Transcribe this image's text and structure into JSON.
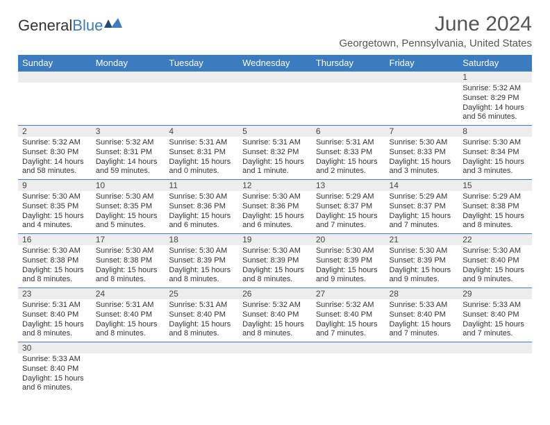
{
  "logo": {
    "general": "General",
    "blue": "Blue"
  },
  "title": "June 2024",
  "location": "Georgetown, Pennsylvania, United States",
  "colors": {
    "header_bg": "#3b7bbf",
    "daynum_bg": "#ededed",
    "border": "#3b7bbf"
  },
  "weekdays": [
    "Sunday",
    "Monday",
    "Tuesday",
    "Wednesday",
    "Thursday",
    "Friday",
    "Saturday"
  ],
  "weeks": [
    [
      null,
      null,
      null,
      null,
      null,
      null,
      {
        "n": "1",
        "sr": "Sunrise: 5:32 AM",
        "ss": "Sunset: 8:29 PM",
        "dl": "Daylight: 14 hours and 56 minutes."
      }
    ],
    [
      {
        "n": "2",
        "sr": "Sunrise: 5:32 AM",
        "ss": "Sunset: 8:30 PM",
        "dl": "Daylight: 14 hours and 58 minutes."
      },
      {
        "n": "3",
        "sr": "Sunrise: 5:32 AM",
        "ss": "Sunset: 8:31 PM",
        "dl": "Daylight: 14 hours and 59 minutes."
      },
      {
        "n": "4",
        "sr": "Sunrise: 5:31 AM",
        "ss": "Sunset: 8:31 PM",
        "dl": "Daylight: 15 hours and 0 minutes."
      },
      {
        "n": "5",
        "sr": "Sunrise: 5:31 AM",
        "ss": "Sunset: 8:32 PM",
        "dl": "Daylight: 15 hours and 1 minute."
      },
      {
        "n": "6",
        "sr": "Sunrise: 5:31 AM",
        "ss": "Sunset: 8:33 PM",
        "dl": "Daylight: 15 hours and 2 minutes."
      },
      {
        "n": "7",
        "sr": "Sunrise: 5:30 AM",
        "ss": "Sunset: 8:33 PM",
        "dl": "Daylight: 15 hours and 3 minutes."
      },
      {
        "n": "8",
        "sr": "Sunrise: 5:30 AM",
        "ss": "Sunset: 8:34 PM",
        "dl": "Daylight: 15 hours and 3 minutes."
      }
    ],
    [
      {
        "n": "9",
        "sr": "Sunrise: 5:30 AM",
        "ss": "Sunset: 8:35 PM",
        "dl": "Daylight: 15 hours and 4 minutes."
      },
      {
        "n": "10",
        "sr": "Sunrise: 5:30 AM",
        "ss": "Sunset: 8:35 PM",
        "dl": "Daylight: 15 hours and 5 minutes."
      },
      {
        "n": "11",
        "sr": "Sunrise: 5:30 AM",
        "ss": "Sunset: 8:36 PM",
        "dl": "Daylight: 15 hours and 6 minutes."
      },
      {
        "n": "12",
        "sr": "Sunrise: 5:30 AM",
        "ss": "Sunset: 8:36 PM",
        "dl": "Daylight: 15 hours and 6 minutes."
      },
      {
        "n": "13",
        "sr": "Sunrise: 5:29 AM",
        "ss": "Sunset: 8:37 PM",
        "dl": "Daylight: 15 hours and 7 minutes."
      },
      {
        "n": "14",
        "sr": "Sunrise: 5:29 AM",
        "ss": "Sunset: 8:37 PM",
        "dl": "Daylight: 15 hours and 7 minutes."
      },
      {
        "n": "15",
        "sr": "Sunrise: 5:29 AM",
        "ss": "Sunset: 8:38 PM",
        "dl": "Daylight: 15 hours and 8 minutes."
      }
    ],
    [
      {
        "n": "16",
        "sr": "Sunrise: 5:30 AM",
        "ss": "Sunset: 8:38 PM",
        "dl": "Daylight: 15 hours and 8 minutes."
      },
      {
        "n": "17",
        "sr": "Sunrise: 5:30 AM",
        "ss": "Sunset: 8:38 PM",
        "dl": "Daylight: 15 hours and 8 minutes."
      },
      {
        "n": "18",
        "sr": "Sunrise: 5:30 AM",
        "ss": "Sunset: 8:39 PM",
        "dl": "Daylight: 15 hours and 8 minutes."
      },
      {
        "n": "19",
        "sr": "Sunrise: 5:30 AM",
        "ss": "Sunset: 8:39 PM",
        "dl": "Daylight: 15 hours and 8 minutes."
      },
      {
        "n": "20",
        "sr": "Sunrise: 5:30 AM",
        "ss": "Sunset: 8:39 PM",
        "dl": "Daylight: 15 hours and 9 minutes."
      },
      {
        "n": "21",
        "sr": "Sunrise: 5:30 AM",
        "ss": "Sunset: 8:39 PM",
        "dl": "Daylight: 15 hours and 9 minutes."
      },
      {
        "n": "22",
        "sr": "Sunrise: 5:30 AM",
        "ss": "Sunset: 8:40 PM",
        "dl": "Daylight: 15 hours and 9 minutes."
      }
    ],
    [
      {
        "n": "23",
        "sr": "Sunrise: 5:31 AM",
        "ss": "Sunset: 8:40 PM",
        "dl": "Daylight: 15 hours and 8 minutes."
      },
      {
        "n": "24",
        "sr": "Sunrise: 5:31 AM",
        "ss": "Sunset: 8:40 PM",
        "dl": "Daylight: 15 hours and 8 minutes."
      },
      {
        "n": "25",
        "sr": "Sunrise: 5:31 AM",
        "ss": "Sunset: 8:40 PM",
        "dl": "Daylight: 15 hours and 8 minutes."
      },
      {
        "n": "26",
        "sr": "Sunrise: 5:32 AM",
        "ss": "Sunset: 8:40 PM",
        "dl": "Daylight: 15 hours and 8 minutes."
      },
      {
        "n": "27",
        "sr": "Sunrise: 5:32 AM",
        "ss": "Sunset: 8:40 PM",
        "dl": "Daylight: 15 hours and 7 minutes."
      },
      {
        "n": "28",
        "sr": "Sunrise: 5:33 AM",
        "ss": "Sunset: 8:40 PM",
        "dl": "Daylight: 15 hours and 7 minutes."
      },
      {
        "n": "29",
        "sr": "Sunrise: 5:33 AM",
        "ss": "Sunset: 8:40 PM",
        "dl": "Daylight: 15 hours and 7 minutes."
      }
    ],
    [
      {
        "n": "30",
        "sr": "Sunrise: 5:33 AM",
        "ss": "Sunset: 8:40 PM",
        "dl": "Daylight: 15 hours and 6 minutes."
      },
      null,
      null,
      null,
      null,
      null,
      null
    ]
  ]
}
